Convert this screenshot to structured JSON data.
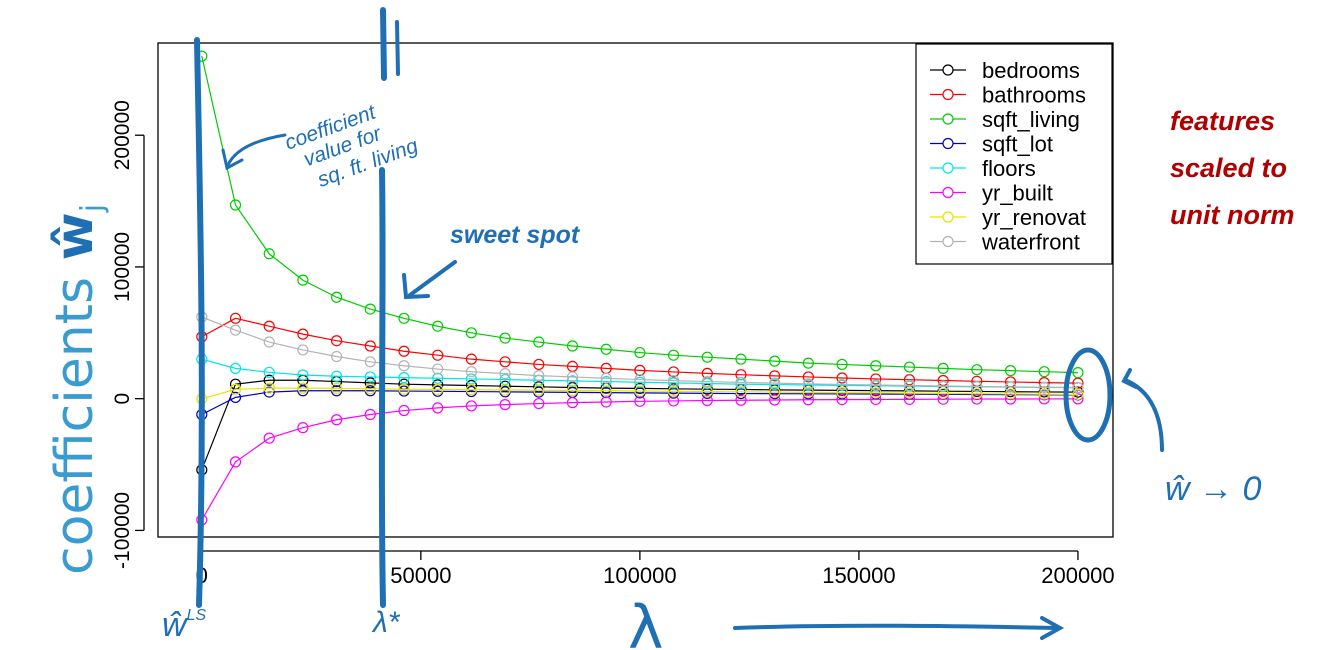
{
  "chart_data": {
    "type": "line",
    "xlabel": "λ",
    "ylabel_main": "coefficients ",
    "ylabel_symbol": "ŵ",
    "ylabel_sub": "j",
    "xlim": [
      -10000,
      208000
    ],
    "ylim": [
      -105000,
      270000
    ],
    "x_ticks": [
      0,
      50000,
      100000,
      150000,
      200000
    ],
    "x_tick_labels": [
      "0",
      "50000",
      "100000",
      "150000",
      "200000"
    ],
    "y_ticks": [
      -100000,
      0,
      100000,
      200000
    ],
    "y_tick_labels": [
      "-100000",
      "0",
      "100000",
      "200000"
    ],
    "grid": false,
    "legend_position": "top-right",
    "x": [
      0,
      7692,
      15385,
      23077,
      30769,
      38462,
      46154,
      53846,
      61538,
      69231,
      76923,
      84615,
      92308,
      100000,
      107692,
      115385,
      123077,
      130769,
      138462,
      146154,
      153846,
      161538,
      169231,
      176923,
      184615,
      192308,
      200000
    ],
    "series": [
      {
        "name": "bedrooms",
        "color": "#000000",
        "values": [
          -54000,
          11000,
          14000,
          14000,
          13000,
          12000,
          11000,
          10500,
          10000,
          9500,
          9000,
          8500,
          8000,
          7800,
          7500,
          7200,
          7000,
          6700,
          6500,
          6300,
          6100,
          5900,
          5700,
          5500,
          5300,
          5100,
          5000
        ]
      },
      {
        "name": "bathrooms",
        "color": "#ff0000",
        "values": [
          47000,
          61000,
          55000,
          49000,
          44000,
          40000,
          36000,
          33000,
          30000,
          28000,
          26000,
          24500,
          23000,
          21500,
          20300,
          19200,
          18200,
          17300,
          16500,
          15700,
          15000,
          14400,
          13800,
          13200,
          12700,
          12200,
          11800
        ]
      },
      {
        "name": "sqft_living",
        "color": "#00cc00",
        "values": [
          260000,
          147000,
          110000,
          90000,
          77000,
          68000,
          61000,
          55000,
          50000,
          46000,
          43000,
          40000,
          37500,
          35000,
          33000,
          31500,
          30000,
          28500,
          27000,
          26000,
          25000,
          24000,
          23000,
          22000,
          21300,
          20500,
          19800
        ]
      },
      {
        "name": "sqft_lot",
        "color": "#0000cc",
        "values": [
          -12000,
          1000,
          5000,
          6000,
          6000,
          6000,
          5800,
          5600,
          5400,
          5200,
          5000,
          4800,
          4600,
          4400,
          4200,
          4000,
          3900,
          3800,
          3700,
          3600,
          3500,
          3400,
          3300,
          3200,
          3100,
          3000,
          2900
        ]
      },
      {
        "name": "floors",
        "color": "#00e5e5",
        "values": [
          30000,
          23000,
          20000,
          18000,
          17000,
          16500,
          16000,
          15500,
          15000,
          14500,
          14000,
          13500,
          13000,
          12500,
          12000,
          11500,
          11000,
          10700,
          10400,
          10100,
          9800,
          9500,
          9200,
          9000,
          8800,
          8600,
          8400
        ]
      },
      {
        "name": "yr_built",
        "color": "#ff00ff",
        "values": [
          -92000,
          -48000,
          -30000,
          -22000,
          -16000,
          -12000,
          -9000,
          -7000,
          -5500,
          -4500,
          -3700,
          -3000,
          -2500,
          -2000,
          -1700,
          -1400,
          -1200,
          -1000,
          -800,
          -700,
          -600,
          -500,
          -400,
          -300,
          -250,
          -200,
          -150
        ]
      },
      {
        "name": "yr_renovat",
        "color": "#e5e500",
        "values": [
          0,
          7000,
          8000,
          8000,
          7800,
          7500,
          7200,
          7000,
          6800,
          6600,
          6400,
          6200,
          6000,
          5800,
          5600,
          5400,
          5200,
          5000,
          4800,
          4600,
          4400,
          4200,
          4000,
          3800,
          3600,
          3400,
          3200
        ]
      },
      {
        "name": "waterfront",
        "color": "#b3b3b3",
        "values": [
          62000,
          52000,
          43000,
          37000,
          32000,
          28000,
          25000,
          22500,
          20500,
          19000,
          17500,
          16500,
          15500,
          14500,
          13700,
          13000,
          12400,
          11800,
          11300,
          10800,
          10400,
          10000,
          9600,
          9300,
          9000,
          8700,
          8400
        ]
      }
    ]
  },
  "annotations": {
    "features_line1": "features",
    "features_line2": "scaled to",
    "features_line3": "unit norm",
    "sweet_spot": "sweet spot",
    "coef_note_line1": "coefficient",
    "coef_note_line2": "value for",
    "coef_note_line3": "sq. ft. living",
    "w_ls": "ŵ",
    "w_ls_sup": "LS",
    "lambda_star": "λ*",
    "w_to_zero": "ŵ → 0",
    "lambda_big": "λ"
  },
  "colors": {
    "annotation_blue": "#1f6fb5",
    "annotation_red": "#b00000",
    "ylabel_blue": "#3a9bd0"
  }
}
